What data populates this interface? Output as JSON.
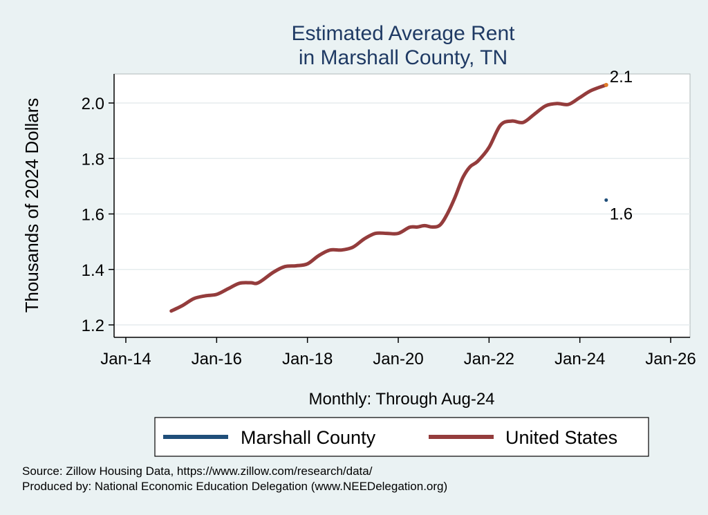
{
  "chart_data": {
    "type": "line",
    "title_lines": [
      "Estimated Average Rent",
      "in Marshall County, TN"
    ],
    "xlabel": "Monthly: Through Aug-24",
    "ylabel": "Thousands of 2024 Dollars",
    "x_ticks": [
      "Jan-14",
      "Jan-16",
      "Jan-18",
      "Jan-20",
      "Jan-22",
      "Jan-24",
      "Jan-26"
    ],
    "x_tick_years": [
      2014,
      2016,
      2018,
      2020,
      2022,
      2024,
      2026
    ],
    "xlim": [
      2014,
      2026
    ],
    "y_ticks": [
      "1.2",
      "1.4",
      "1.6",
      "1.8",
      "2.0"
    ],
    "y_tick_values": [
      1.2,
      1.4,
      1.6,
      1.8,
      2.0
    ],
    "ylim": [
      1.17,
      2.1
    ],
    "grid": true,
    "series": [
      {
        "name": "Marshall County",
        "color": "#1f4e79",
        "x": [
          2024.58
        ],
        "values": [
          1.65
        ],
        "end_label": "1.6"
      },
      {
        "name": "United States",
        "color": "#943c3c",
        "x": [
          2015.0,
          2015.25,
          2015.5,
          2015.75,
          2016.0,
          2016.25,
          2016.5,
          2016.75,
          2016.92,
          2017.25,
          2017.5,
          2017.75,
          2018.0,
          2018.25,
          2018.5,
          2018.75,
          2019.0,
          2019.25,
          2019.5,
          2019.75,
          2020.0,
          2020.25,
          2020.42,
          2020.58,
          2020.75,
          2020.92,
          2021.08,
          2021.25,
          2021.42,
          2021.58,
          2021.75,
          2022.0,
          2022.25,
          2022.5,
          2022.75,
          2023.0,
          2023.25,
          2023.5,
          2023.75,
          2024.0,
          2024.25,
          2024.58
        ],
        "values": [
          1.25,
          1.27,
          1.295,
          1.305,
          1.31,
          1.33,
          1.35,
          1.352,
          1.352,
          1.39,
          1.41,
          1.413,
          1.42,
          1.45,
          1.47,
          1.47,
          1.48,
          1.51,
          1.53,
          1.53,
          1.53,
          1.552,
          1.553,
          1.558,
          1.553,
          1.56,
          1.6,
          1.66,
          1.73,
          1.77,
          1.79,
          1.84,
          1.92,
          1.935,
          1.93,
          1.96,
          1.99,
          1.998,
          1.995,
          2.02,
          2.045,
          2.065
        ],
        "end_label": "2.1"
      }
    ],
    "legend": {
      "placement": "bottom",
      "items": [
        "Marshall County",
        "United States"
      ]
    },
    "notes": [
      "Source: Zillow Housing Data, https://www.zillow.com/research/data/",
      "Produced by: National Economic Education Delegation (www.NEEDelegation.org)"
    ],
    "colors": {
      "background": "#eaf2f3",
      "plot_background": "#ffffff",
      "title": "#1f3a64",
      "end_marker": "#e07b28"
    }
  }
}
